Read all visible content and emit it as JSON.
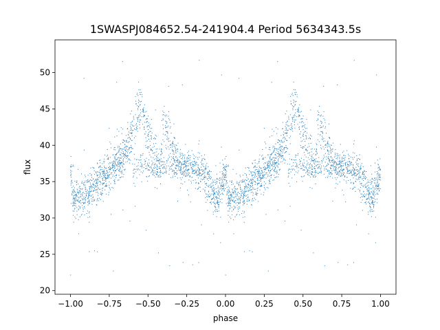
{
  "chart_data": {
    "type": "scatter",
    "title": "1SWASPJ084652.54-241904.4 Period 5634343.5s",
    "xlabel": "phase",
    "ylabel": "flux",
    "xlim": [
      -1.1,
      1.1
    ],
    "ylim": [
      19.5,
      54.5
    ],
    "xticks": [
      -1.0,
      -0.75,
      -0.5,
      -0.25,
      0.0,
      0.25,
      0.5,
      0.75,
      1.0
    ],
    "xtick_labels": [
      "−1.00",
      "−0.75",
      "−0.50",
      "−0.25",
      "0.00",
      "0.25",
      "0.50",
      "0.75",
      "1.00"
    ],
    "yticks": [
      20,
      25,
      30,
      35,
      40,
      45,
      50
    ],
    "ytick_labels": [
      "20",
      "25",
      "30",
      "35",
      "40",
      "45",
      "50"
    ],
    "grid": false,
    "marker_color": "#1f77b4",
    "phase_folded": true,
    "trend": {
      "phase": [
        0.0,
        0.02,
        0.05,
        0.1,
        0.15,
        0.2,
        0.25,
        0.3,
        0.35,
        0.38,
        0.4,
        0.42,
        0.44,
        0.46,
        0.48,
        0.5,
        0.52,
        0.55,
        0.58,
        0.6,
        0.62,
        0.65,
        0.7,
        0.75,
        0.8,
        0.85,
        0.9,
        0.95,
        1.0
      ],
      "flux": [
        36.0,
        33.0,
        32.5,
        33.0,
        34.5,
        35.5,
        36.5,
        37.5,
        38.5,
        40.0,
        42.0,
        43.5,
        45.0,
        45.5,
        43.0,
        41.5,
        40.5,
        38.0,
        37.0,
        44.0,
        42.0,
        40.5,
        37.5,
        37.0,
        36.5,
        35.5,
        34.0,
        33.0,
        36.0
      ]
    },
    "secondary_branch": {
      "phase": [
        0.4,
        0.45,
        0.5,
        0.55,
        0.6,
        0.65,
        0.7,
        0.75,
        0.8,
        0.85,
        0.9
      ],
      "flux": [
        36.5,
        37.0,
        37.0,
        37.0,
        37.0,
        37.0,
        37.0,
        37.0,
        37.0,
        36.5,
        36.0
      ]
    }
  }
}
